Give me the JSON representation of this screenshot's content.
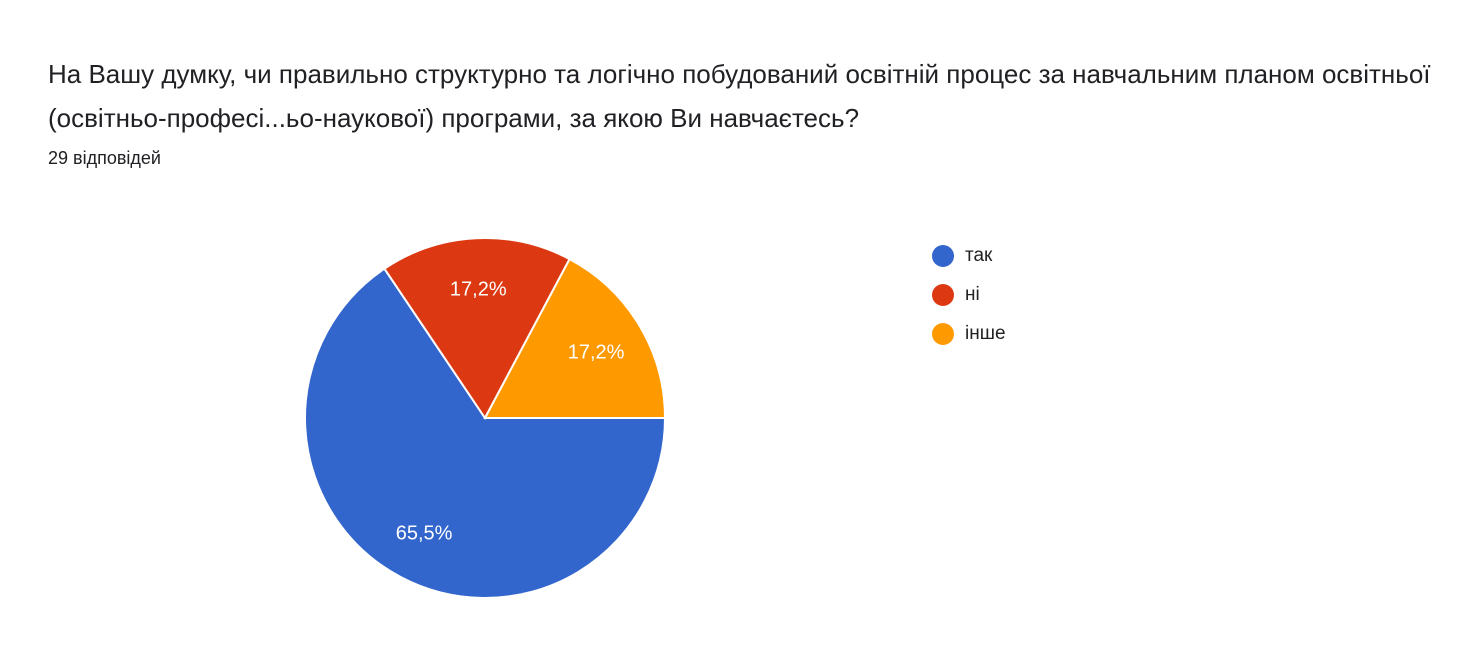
{
  "title": "На Вашу думку, чи правильно структурно та логічно побудований освітній процес за навчальним планом освітньої (освітньо-професі...ьо-наукової) програми, за якою Ви навчаєтесь?",
  "response_count": "29 відповідей",
  "chart_data": {
    "type": "pie",
    "categories": [
      "так",
      "ні",
      "інше"
    ],
    "values": [
      65.5,
      17.2,
      17.2
    ],
    "labels": [
      "65,5%",
      "17,2%",
      "17,2%"
    ],
    "colors": [
      "#3366cc",
      "#dc3912",
      "#ff9900"
    ],
    "legend": "right",
    "start_angle_deg": 90
  }
}
